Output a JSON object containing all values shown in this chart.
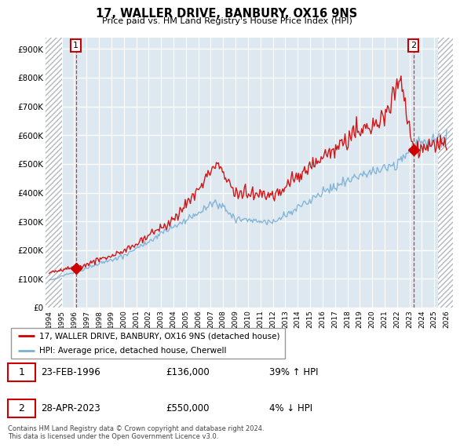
{
  "title": "17, WALLER DRIVE, BANBURY, OX16 9NS",
  "subtitle": "Price paid vs. HM Land Registry's House Price Index (HPI)",
  "ylabel_ticks": [
    "£0",
    "£100K",
    "£200K",
    "£300K",
    "£400K",
    "£500K",
    "£600K",
    "£700K",
    "£800K",
    "£900K"
  ],
  "ytick_values": [
    0,
    100000,
    200000,
    300000,
    400000,
    500000,
    600000,
    700000,
    800000,
    900000
  ],
  "ylim": [
    0,
    940000
  ],
  "xlim_start": 1993.7,
  "xlim_end": 2026.5,
  "hatch_left_end": 1995.0,
  "hatch_right_start": 2025.3,
  "sale1_x": 1996.15,
  "sale1_y": 136000,
  "sale1_label": "1",
  "sale1_date": "23-FEB-1996",
  "sale1_price": "£136,000",
  "sale1_hpi": "39% ↑ HPI",
  "sale2_x": 2023.32,
  "sale2_y": 550000,
  "sale2_label": "2",
  "sale2_date": "28-APR-2023",
  "sale2_price": "£550,000",
  "sale2_hpi": "4% ↓ HPI",
  "legend_line1": "17, WALLER DRIVE, BANBURY, OX16 9NS (detached house)",
  "legend_line2": "HPI: Average price, detached house, Cherwell",
  "footer": "Contains HM Land Registry data © Crown copyright and database right 2024.\nThis data is licensed under the Open Government Licence v3.0.",
  "plot_bg": "#dde8f0",
  "grid_color": "#ffffff",
  "red_line_color": "#cc0000",
  "blue_line_color": "#7bafd4",
  "marker_color": "#cc0000",
  "dashed_line_color": "#cc0000",
  "box_outline_color": "#cc0000",
  "hatch_edgecolor": "#b0b8c0"
}
